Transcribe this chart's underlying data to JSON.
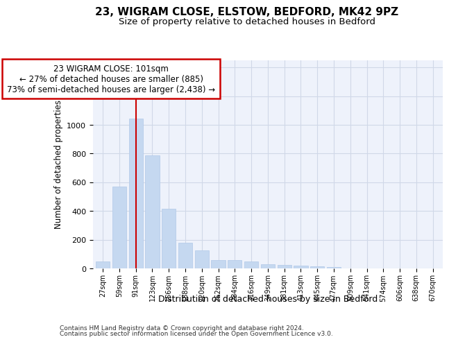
{
  "title1": "23, WIGRAM CLOSE, ELSTOW, BEDFORD, MK42 9PZ",
  "title2": "Size of property relative to detached houses in Bedford",
  "xlabel": "Distribution of detached houses by size in Bedford",
  "ylabel": "Number of detached properties",
  "categories": [
    "27sqm",
    "59sqm",
    "91sqm",
    "123sqm",
    "156sqm",
    "188sqm",
    "220sqm",
    "252sqm",
    "284sqm",
    "316sqm",
    "349sqm",
    "381sqm",
    "413sqm",
    "445sqm",
    "477sqm",
    "509sqm",
    "541sqm",
    "574sqm",
    "606sqm",
    "638sqm",
    "670sqm"
  ],
  "values": [
    48,
    572,
    1042,
    790,
    418,
    178,
    128,
    60,
    58,
    46,
    28,
    26,
    20,
    15,
    12,
    0,
    0,
    0,
    0,
    0,
    0
  ],
  "bar_color": "#c5d8f0",
  "bar_edge_color": "#b0c8e8",
  "vline_x_index": 2,
  "vline_color": "#cc0000",
  "ylim": [
    0,
    1450
  ],
  "yticks": [
    0,
    200,
    400,
    600,
    800,
    1000,
    1200,
    1400
  ],
  "annotation_line1": "23 WIGRAM CLOSE: 101sqm",
  "annotation_line2": "← 27% of detached houses are smaller (885)",
  "annotation_line3": "73% of semi-detached houses are larger (2,438) →",
  "annotation_box_color": "#cc0000",
  "footnote1": "Contains HM Land Registry data © Crown copyright and database right 2024.",
  "footnote2": "Contains public sector information licensed under the Open Government Licence v3.0.",
  "background_color": "#eef2fb",
  "grid_color": "#d0d8e8"
}
